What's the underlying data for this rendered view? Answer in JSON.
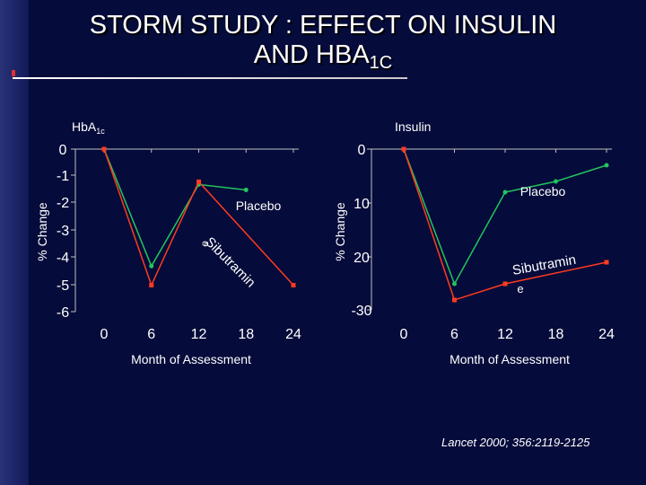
{
  "page": {
    "title_line1": "STORM STUDY : EFFECT ON INSULIN",
    "title_line2": "AND HBA",
    "title_sub": "1C",
    "citation": "Lancet 2000; 356:2119-2125"
  },
  "colors": {
    "background": "#050b3a",
    "placebo": "#22c55e",
    "sibutramine": "#ff3b1f",
    "axis": "#c0c0c0"
  },
  "chart_data": [
    {
      "type": "line",
      "title": "HbA",
      "title_sub": "1c",
      "xlabel": "Month of Assessment",
      "ylabel": "% Change",
      "x": [
        0,
        6,
        12,
        18,
        24
      ],
      "xticks": [
        "0",
        "6",
        "12",
        "18",
        "24"
      ],
      "yticks": [
        "0",
        "-1",
        "-2",
        "-3",
        "-4",
        "-5",
        "-6"
      ],
      "ylim": [
        -6,
        0
      ],
      "series": [
        {
          "name": "Placebo",
          "color": "#22c55e",
          "values": [
            0,
            -4.3,
            -1.3,
            -1.5,
            null
          ]
        },
        {
          "name": "Sibutramin",
          "name_tail": "e",
          "color": "#ff3b1f",
          "values": [
            0,
            -5.0,
            -1.2,
            null,
            -5.0
          ]
        }
      ]
    },
    {
      "type": "line",
      "title": "Insulin",
      "xlabel": "Month of Assessment",
      "ylabel": "% Change",
      "x": [
        0,
        6,
        12,
        18,
        24
      ],
      "xticks": [
        "0",
        "6",
        "12",
        "18",
        "24"
      ],
      "yticks": [
        "0",
        "10",
        "20",
        "-30"
      ],
      "ylim": [
        -30,
        0
      ],
      "series": [
        {
          "name": "Placebo",
          "color": "#22c55e",
          "values": [
            0,
            -25,
            -8,
            -6,
            -3
          ]
        },
        {
          "name": "Sibutramin",
          "name_tail": "e",
          "color": "#ff3b1f",
          "values": [
            0,
            -28,
            -25,
            null,
            -21
          ]
        }
      ]
    }
  ]
}
